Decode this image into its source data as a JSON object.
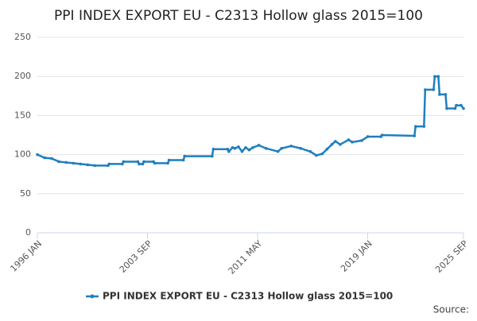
{
  "chart_data": {
    "type": "line",
    "title": "PPI INDEX EXPORT EU - C2313 Hollow glass 2015=100",
    "source": "Source:",
    "x": [
      "1996 JAN",
      "1996 JUL",
      "1997 JAN",
      "1997 JUL",
      "1998 JAN",
      "1998 JUL",
      "1999 JAN",
      "1999 JUL",
      "2000 JAN",
      "2000 DEC",
      "2001 JAN",
      "2001 DEC",
      "2002 JAN",
      "2003 JAN",
      "2003 FEB",
      "2003 MAY",
      "2003 JUN",
      "2004 FEB",
      "2004 MAR",
      "2005 FEB",
      "2005 MAR",
      "2006 MAR",
      "2006 APR",
      "2008 MAR",
      "2008 APR",
      "2009 APR",
      "2009 MAY",
      "2009 AUG",
      "2009 OCT",
      "2010 JAN",
      "2010 APR",
      "2010 JUL",
      "2010 OCT",
      "2011 JAN",
      "2011 JUN",
      "2011 DEC",
      "2012 OCT",
      "2013 JAN",
      "2013 SEP",
      "2014 MAY",
      "2015 JAN",
      "2015 JUN",
      "2015 NOV",
      "2016 MAR",
      "2016 JUL",
      "2016 OCT",
      "2017 FEB",
      "2017 SEP",
      "2017 DEC",
      "2018 AUG",
      "2019 JAN",
      "2019 DEC",
      "2020 JAN",
      "2022 APR",
      "2022 MAY",
      "2022 DEC",
      "2023 JAN",
      "2023 AUG",
      "2023 SEP",
      "2023 DEC",
      "2024 JAN",
      "2024 JUN",
      "2024 JUL",
      "2025 FEB",
      "2025 MAR",
      "2025 JUL",
      "2025 SEP"
    ],
    "series": [
      {
        "name": "PPI INDEX EXPORT EU - C2313 Hollow glass 2015=100",
        "color": "#1f7fc0",
        "values": [
          100,
          96,
          95,
          91,
          90,
          89,
          88,
          87,
          86,
          86,
          88,
          88,
          91,
          91,
          88,
          88,
          91,
          91,
          89,
          89,
          93,
          93,
          98,
          98,
          107,
          107,
          104,
          109,
          108,
          110,
          104,
          109,
          106,
          109,
          112,
          108,
          104,
          108,
          111,
          108,
          104,
          99,
          101,
          107,
          113,
          117,
          113,
          119,
          116,
          118,
          123,
          123,
          125,
          124,
          136,
          136,
          183,
          183,
          200,
          200,
          177,
          177,
          159,
          159,
          163,
          163,
          159
        ]
      }
    ],
    "xticks": [
      "1996 JAN",
      "2003 SEP",
      "2011 MAY",
      "2019 JAN",
      "2025 SEP"
    ],
    "ylim": [
      0,
      250
    ],
    "yticks": [
      0,
      50,
      100,
      150,
      200,
      250
    ],
    "grid": true,
    "legend": "bottom"
  }
}
